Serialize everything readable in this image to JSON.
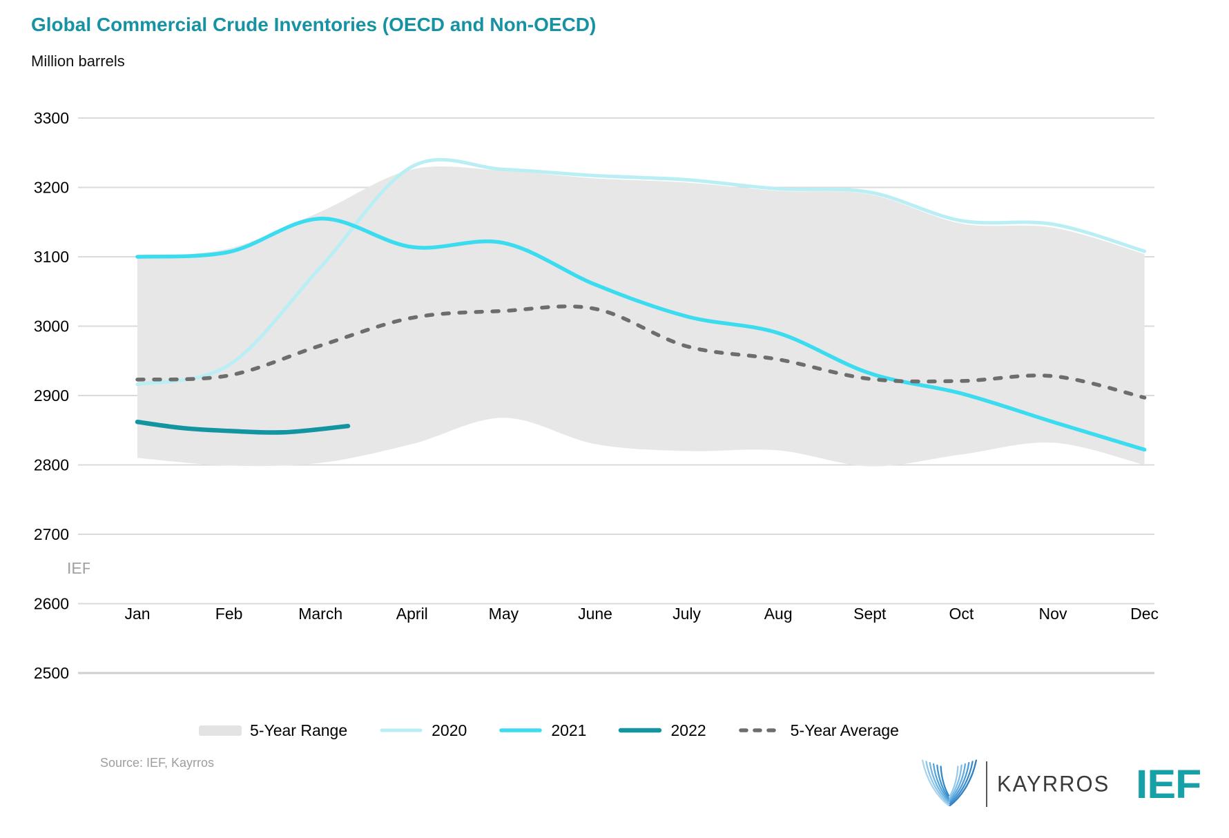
{
  "header": {
    "title": "Global Commercial Crude Inventories (OECD and Non-OECD)",
    "units": "Million barrels"
  },
  "watermark": {
    "text": "IEF"
  },
  "source": {
    "text": "Source: IEF, Kayrros"
  },
  "logos": {
    "kayrros_text": "KAYRROS",
    "ief_text": "IEF"
  },
  "legend": {
    "items": [
      {
        "id": "range",
        "label": "5-Year Range"
      },
      {
        "id": "y2020",
        "label": "2020"
      },
      {
        "id": "y2021",
        "label": "2021"
      },
      {
        "id": "y2022",
        "label": "2022"
      },
      {
        "id": "avg",
        "label": "5-Year Average"
      }
    ]
  },
  "colors": {
    "title": "#1692a3",
    "band": "#e7e7e7",
    "grid": "#dadada",
    "axis_text": "#000000",
    "s2020": "#b9eef5",
    "s2021": "#3bdcef",
    "s2022": "#1394a1",
    "avg": "#6d6d6d",
    "source_text": "#9e9e9e",
    "ief_logo": "#16a0a8",
    "kayrros_blue": "#4c9ad6"
  },
  "chart_data": {
    "type": "line",
    "title": "Global Commercial Crude Inventories (OECD and Non-OECD)",
    "xlabel": "",
    "ylabel": "Million barrels",
    "ylim": [
      2500,
      3300
    ],
    "y_ticks": [
      2500,
      2600,
      2700,
      2800,
      2900,
      3000,
      3100,
      3200,
      3300
    ],
    "grid": "horizontal",
    "legend_position": "bottom",
    "categories": [
      "Jan",
      "Feb",
      "March",
      "April",
      "May",
      "June",
      "July",
      "Aug",
      "Sept",
      "Oct",
      "Nov",
      "Dec"
    ],
    "band": {
      "name": "5-Year Range",
      "upper": [
        3100,
        3112,
        3165,
        3226,
        3224,
        3213,
        3207,
        3195,
        3190,
        3148,
        3142,
        3104
      ],
      "lower": [
        2810,
        2799,
        2803,
        2830,
        2868,
        2830,
        2820,
        2821,
        2798,
        2815,
        2832,
        2800
      ]
    },
    "series": [
      {
        "name": "2020",
        "style": "solid",
        "width": 5,
        "values": [
          2916,
          2944,
          3085,
          3230,
          3226,
          3217,
          3211,
          3198,
          3193,
          3152,
          3147,
          3108
        ]
      },
      {
        "name": "2021",
        "style": "solid",
        "width": 5.5,
        "values": [
          3100,
          3107,
          3155,
          3114,
          3120,
          3060,
          3014,
          2990,
          2932,
          2903,
          2862,
          2822
        ]
      },
      {
        "name": "2022",
        "style": "solid",
        "width": 6.5,
        "x_months": [
          1,
          1.5,
          2,
          2.6,
          3.3
        ],
        "values": [
          2862,
          2853,
          2849,
          2847,
          2856
        ]
      },
      {
        "name": "5-Year Average",
        "style": "dashed",
        "width": 5.5,
        "values": [
          2923,
          2929,
          2972,
          3012,
          3022,
          3025,
          2971,
          2952,
          2924,
          2921,
          2928,
          2897
        ]
      }
    ]
  }
}
